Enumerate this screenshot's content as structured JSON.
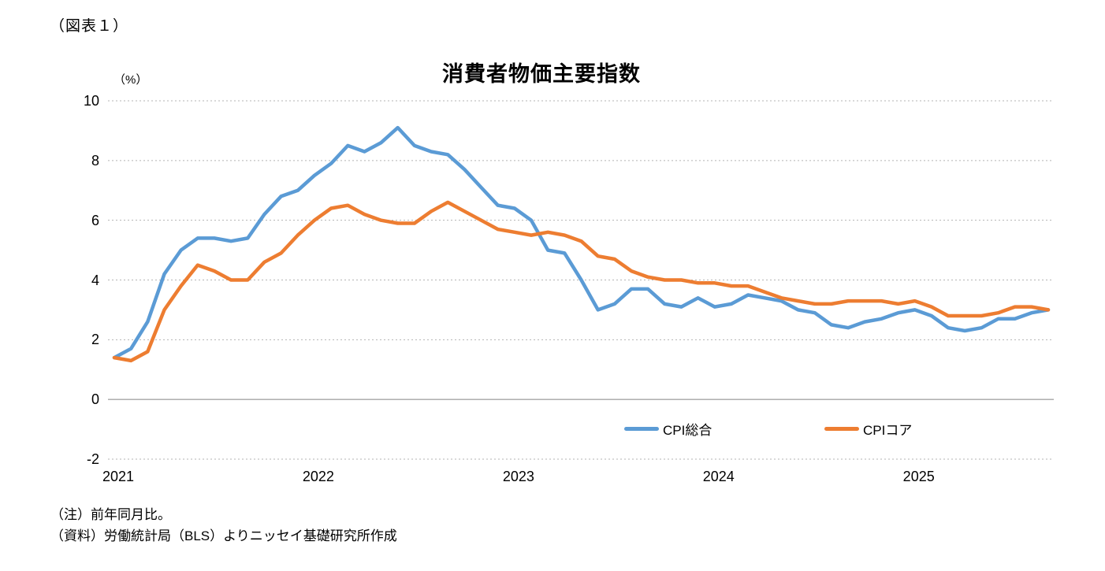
{
  "figure_label": "（図表１）",
  "notes": [
    "（注）前年同月比。",
    "（資料）労働統計局（BLS）よりニッセイ基礎研究所作成"
  ],
  "chart_data": {
    "type": "line",
    "title": "消費者物価主要指数",
    "unit_label": "（%）",
    "y_axis": {
      "min": -2,
      "max": 10,
      "ticks": [
        10,
        8,
        6,
        4,
        2,
        0,
        -2
      ]
    },
    "x_axis": {
      "ticks": [
        {
          "label": "2021",
          "month_index": 0
        },
        {
          "label": "2022",
          "month_index": 12
        },
        {
          "label": "2023",
          "month_index": 24
        },
        {
          "label": "2024",
          "month_index": 36
        },
        {
          "label": "2025",
          "month_index": 48
        }
      ]
    },
    "grid": {
      "horizontal": "dotted",
      "zero_line": "solid",
      "vertical": "off"
    },
    "legend": {
      "position": "inside-bottom-right",
      "items": [
        "CPI総合",
        "CPIコア"
      ]
    },
    "x": [
      "2021-01",
      "2021-02",
      "2021-03",
      "2021-04",
      "2021-05",
      "2021-06",
      "2021-07",
      "2021-08",
      "2021-09",
      "2021-10",
      "2021-11",
      "2021-12",
      "2022-01",
      "2022-02",
      "2022-03",
      "2022-04",
      "2022-05",
      "2022-06",
      "2022-07",
      "2022-08",
      "2022-09",
      "2022-10",
      "2022-11",
      "2022-12",
      "2023-01",
      "2023-02",
      "2023-03",
      "2023-04",
      "2023-05",
      "2023-06",
      "2023-07",
      "2023-08",
      "2023-09",
      "2023-10",
      "2023-11",
      "2023-12",
      "2024-01",
      "2024-02",
      "2024-03",
      "2024-04",
      "2024-05",
      "2024-06",
      "2024-07",
      "2024-08",
      "2024-09",
      "2024-10",
      "2024-11",
      "2024-12",
      "2025-01",
      "2025-02",
      "2025-03",
      "2025-04",
      "2025-05",
      "2025-06",
      "2025-07",
      "2025-08",
      "2025-09"
    ],
    "series": [
      {
        "name": "CPI総合",
        "color": "#5B9BD5",
        "values": [
          1.4,
          1.7,
          2.6,
          4.2,
          5.0,
          5.4,
          5.4,
          5.3,
          5.4,
          6.2,
          6.8,
          7.0,
          7.5,
          7.9,
          8.5,
          8.3,
          8.6,
          9.1,
          8.5,
          8.3,
          8.2,
          7.7,
          7.1,
          6.5,
          6.4,
          6.0,
          5.0,
          4.9,
          4.0,
          3.0,
          3.2,
          3.7,
          3.7,
          3.2,
          3.1,
          3.4,
          3.1,
          3.2,
          3.5,
          3.4,
          3.3,
          3.0,
          2.9,
          2.5,
          2.4,
          2.6,
          2.7,
          2.9,
          3.0,
          2.8,
          2.4,
          2.3,
          2.4,
          2.7,
          2.7,
          2.9,
          3.0
        ]
      },
      {
        "name": "CPIコア",
        "color": "#ED7D31",
        "values": [
          1.4,
          1.3,
          1.6,
          3.0,
          3.8,
          4.5,
          4.3,
          4.0,
          4.0,
          4.6,
          4.9,
          5.5,
          6.0,
          6.4,
          6.5,
          6.2,
          6.0,
          5.9,
          5.9,
          6.3,
          6.6,
          6.3,
          6.0,
          5.7,
          5.6,
          5.5,
          5.6,
          5.5,
          5.3,
          4.8,
          4.7,
          4.3,
          4.1,
          4.0,
          4.0,
          3.9,
          3.9,
          3.8,
          3.8,
          3.6,
          3.4,
          3.3,
          3.2,
          3.2,
          3.3,
          3.3,
          3.3,
          3.2,
          3.3,
          3.1,
          2.8,
          2.8,
          2.8,
          2.9,
          3.1,
          3.1,
          3.0
        ]
      }
    ]
  }
}
